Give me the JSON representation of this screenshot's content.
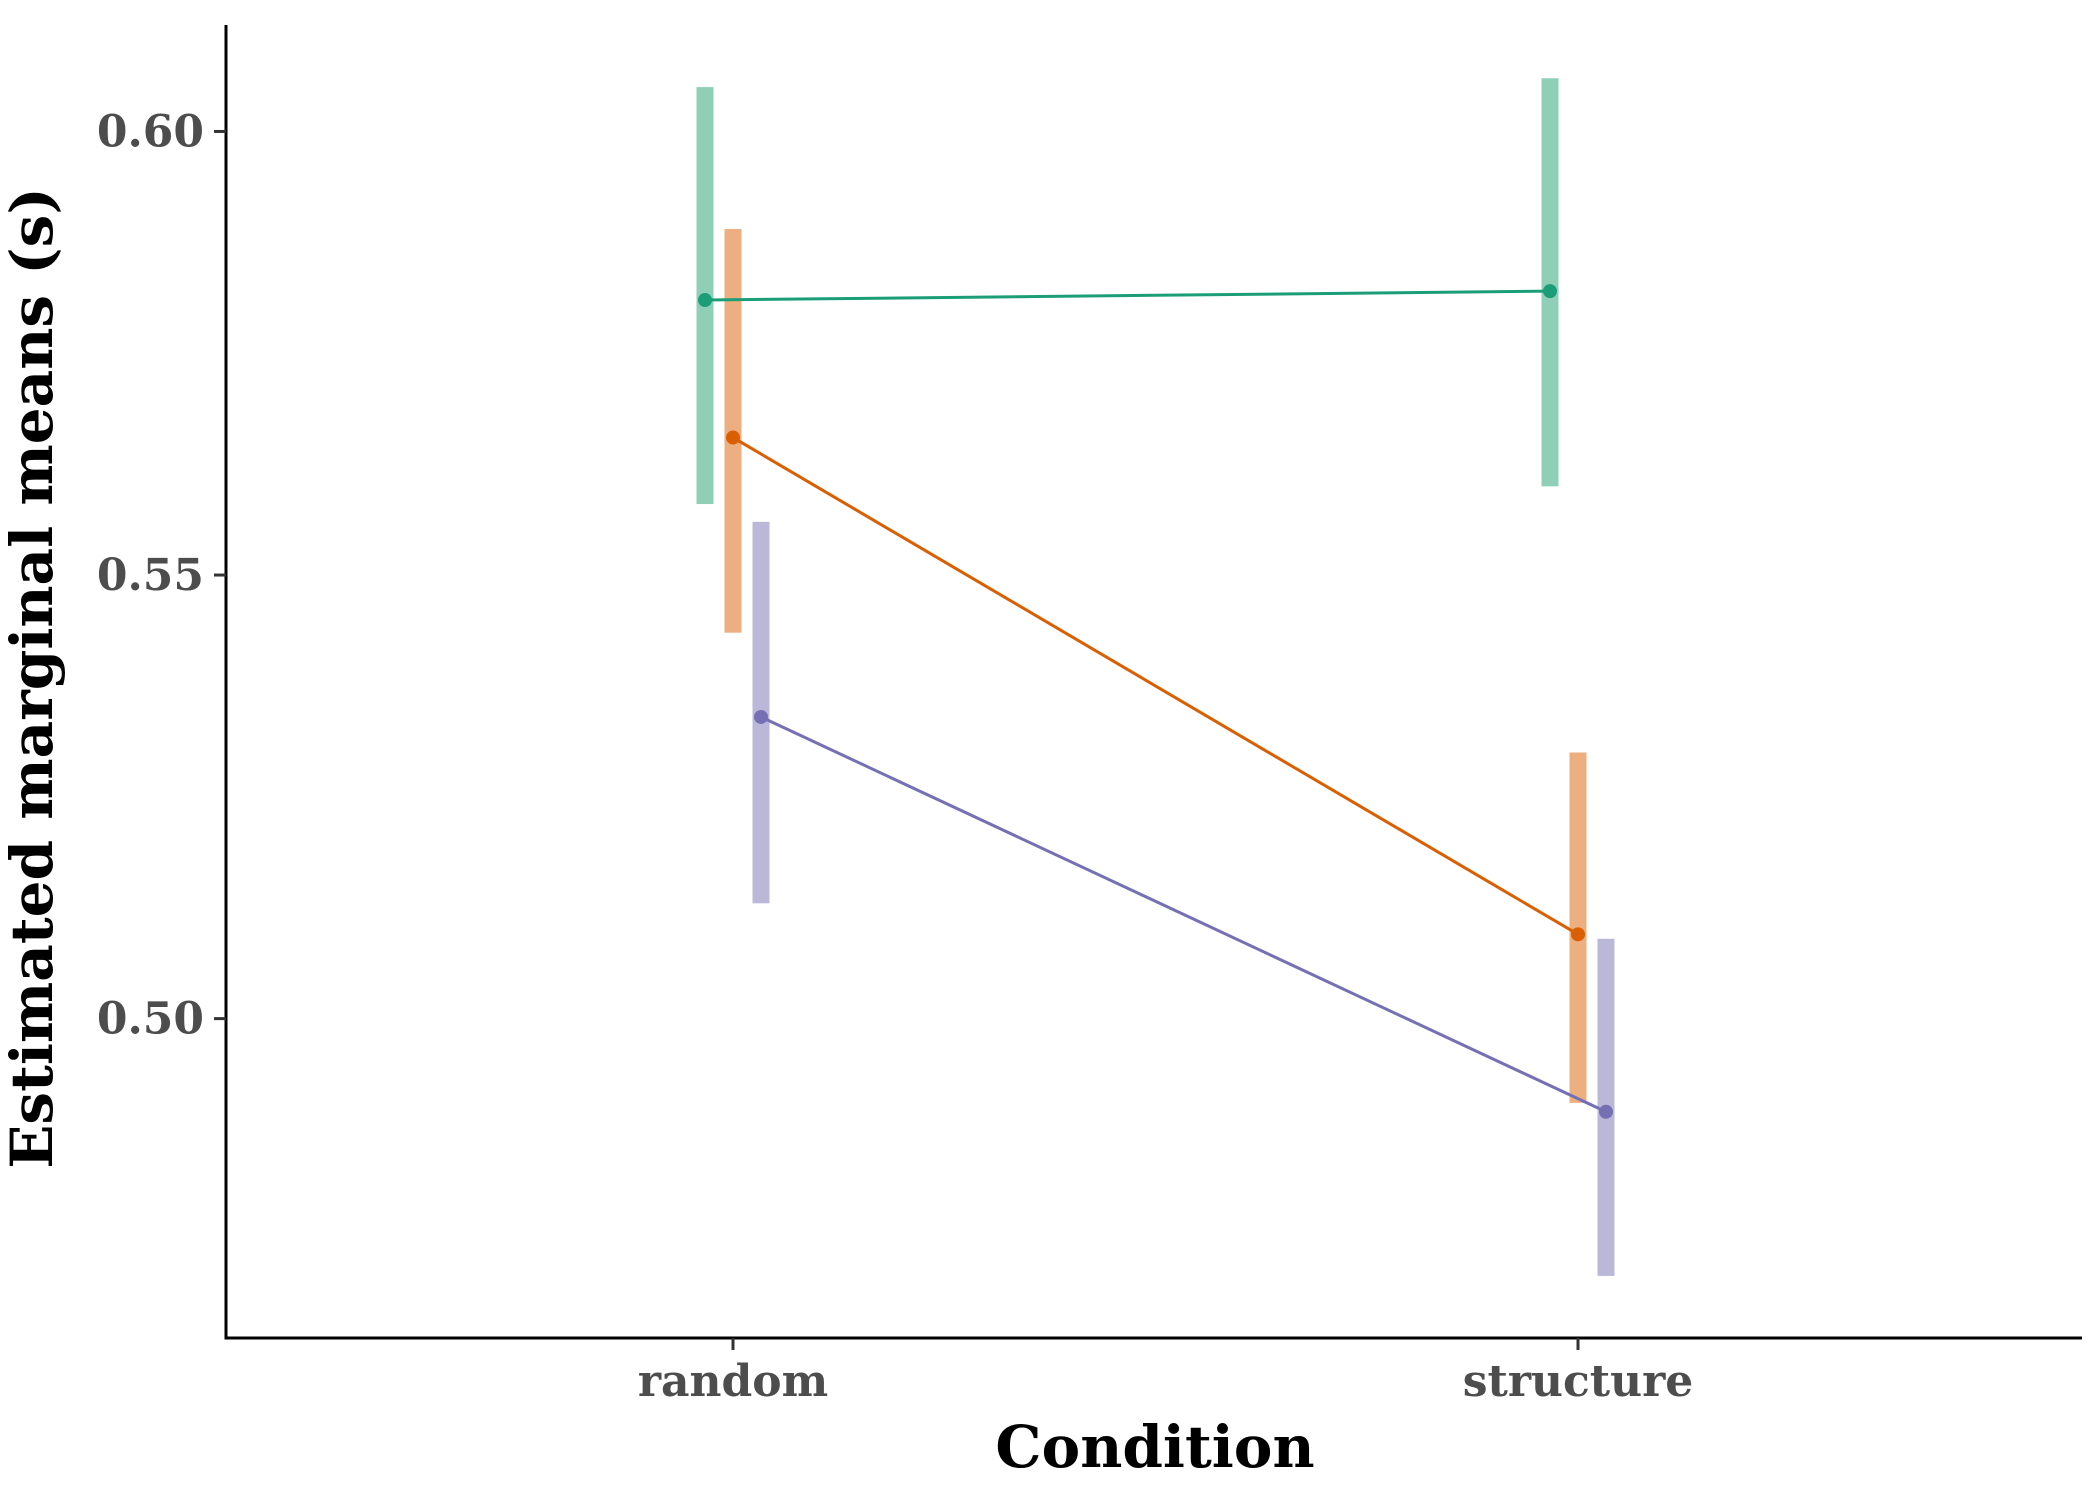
{
  "chart_data": {
    "type": "line",
    "title": "",
    "xlabel": "Condition",
    "ylabel": "Estimated marginal means (s)",
    "categories": [
      "random",
      "structure"
    ],
    "ylim": [
      0.464,
      0.612
    ],
    "y_ticks": [
      0.5,
      0.55,
      0.6
    ],
    "y_tick_labels": [
      "0.50",
      "0.55",
      "0.60"
    ],
    "grid": false,
    "legend": "none",
    "error_bars": true,
    "series": [
      {
        "color": "#1b9e77",
        "bar_color": "#8fcfb8",
        "values": [
          0.581,
          0.582
        ],
        "lower": [
          0.558,
          0.56
        ],
        "upper": [
          0.605,
          0.606
        ]
      },
      {
        "color": "#d95f02",
        "bar_color": "#eeaf80",
        "values": [
          0.5655,
          0.5095
        ],
        "lower": [
          0.5435,
          0.4905
        ],
        "upper": [
          0.589,
          0.53
        ]
      },
      {
        "color": "#7570b3",
        "bar_color": "#bab7d9",
        "values": [
          0.534,
          0.4895
        ],
        "lower": [
          0.513,
          0.471
        ],
        "upper": [
          0.556,
          0.509
        ]
      }
    ]
  }
}
